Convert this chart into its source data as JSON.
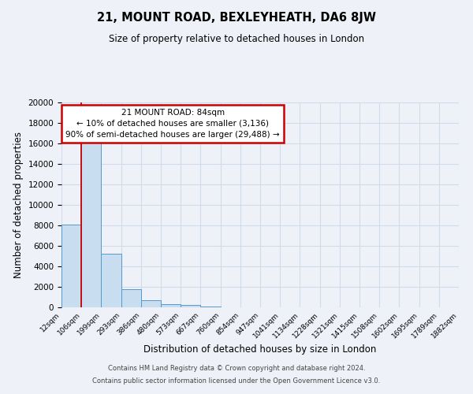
{
  "title": "21, MOUNT ROAD, BEXLEYHEATH, DA6 8JW",
  "subtitle": "Size of property relative to detached houses in London",
  "xlabel": "Distribution of detached houses by size in London",
  "ylabel": "Number of detached properties",
  "bin_labels": [
    "12sqm",
    "106sqm",
    "199sqm",
    "293sqm",
    "386sqm",
    "480sqm",
    "573sqm",
    "667sqm",
    "760sqm",
    "854sqm",
    "947sqm",
    "1041sqm",
    "1134sqm",
    "1228sqm",
    "1321sqm",
    "1415sqm",
    "1508sqm",
    "1602sqm",
    "1695sqm",
    "1789sqm",
    "1882sqm"
  ],
  "bar_heights": [
    8100,
    16600,
    5200,
    1750,
    700,
    300,
    250,
    100,
    0,
    0,
    0,
    0,
    0,
    0,
    0,
    0,
    0,
    0,
    0,
    0
  ],
  "bar_color": "#c8ddf0",
  "bar_edge_color": "#5599cc",
  "ylim": [
    0,
    20000
  ],
  "yticks": [
    0,
    2000,
    4000,
    6000,
    8000,
    10000,
    12000,
    14000,
    16000,
    18000,
    20000
  ],
  "annotation_title": "21 MOUNT ROAD: 84sqm",
  "annotation_line1": "← 10% of detached houses are smaller (3,136)",
  "annotation_line2": "90% of semi-detached houses are larger (29,488) →",
  "annotation_box_color": "#ffffff",
  "annotation_box_edge": "#cc0000",
  "red_line_color": "#cc0000",
  "grid_color": "#d0daea",
  "background_color": "#eef2f8",
  "footer_line1": "Contains HM Land Registry data © Crown copyright and database right 2024.",
  "footer_line2": "Contains public sector information licensed under the Open Government Licence v3.0."
}
